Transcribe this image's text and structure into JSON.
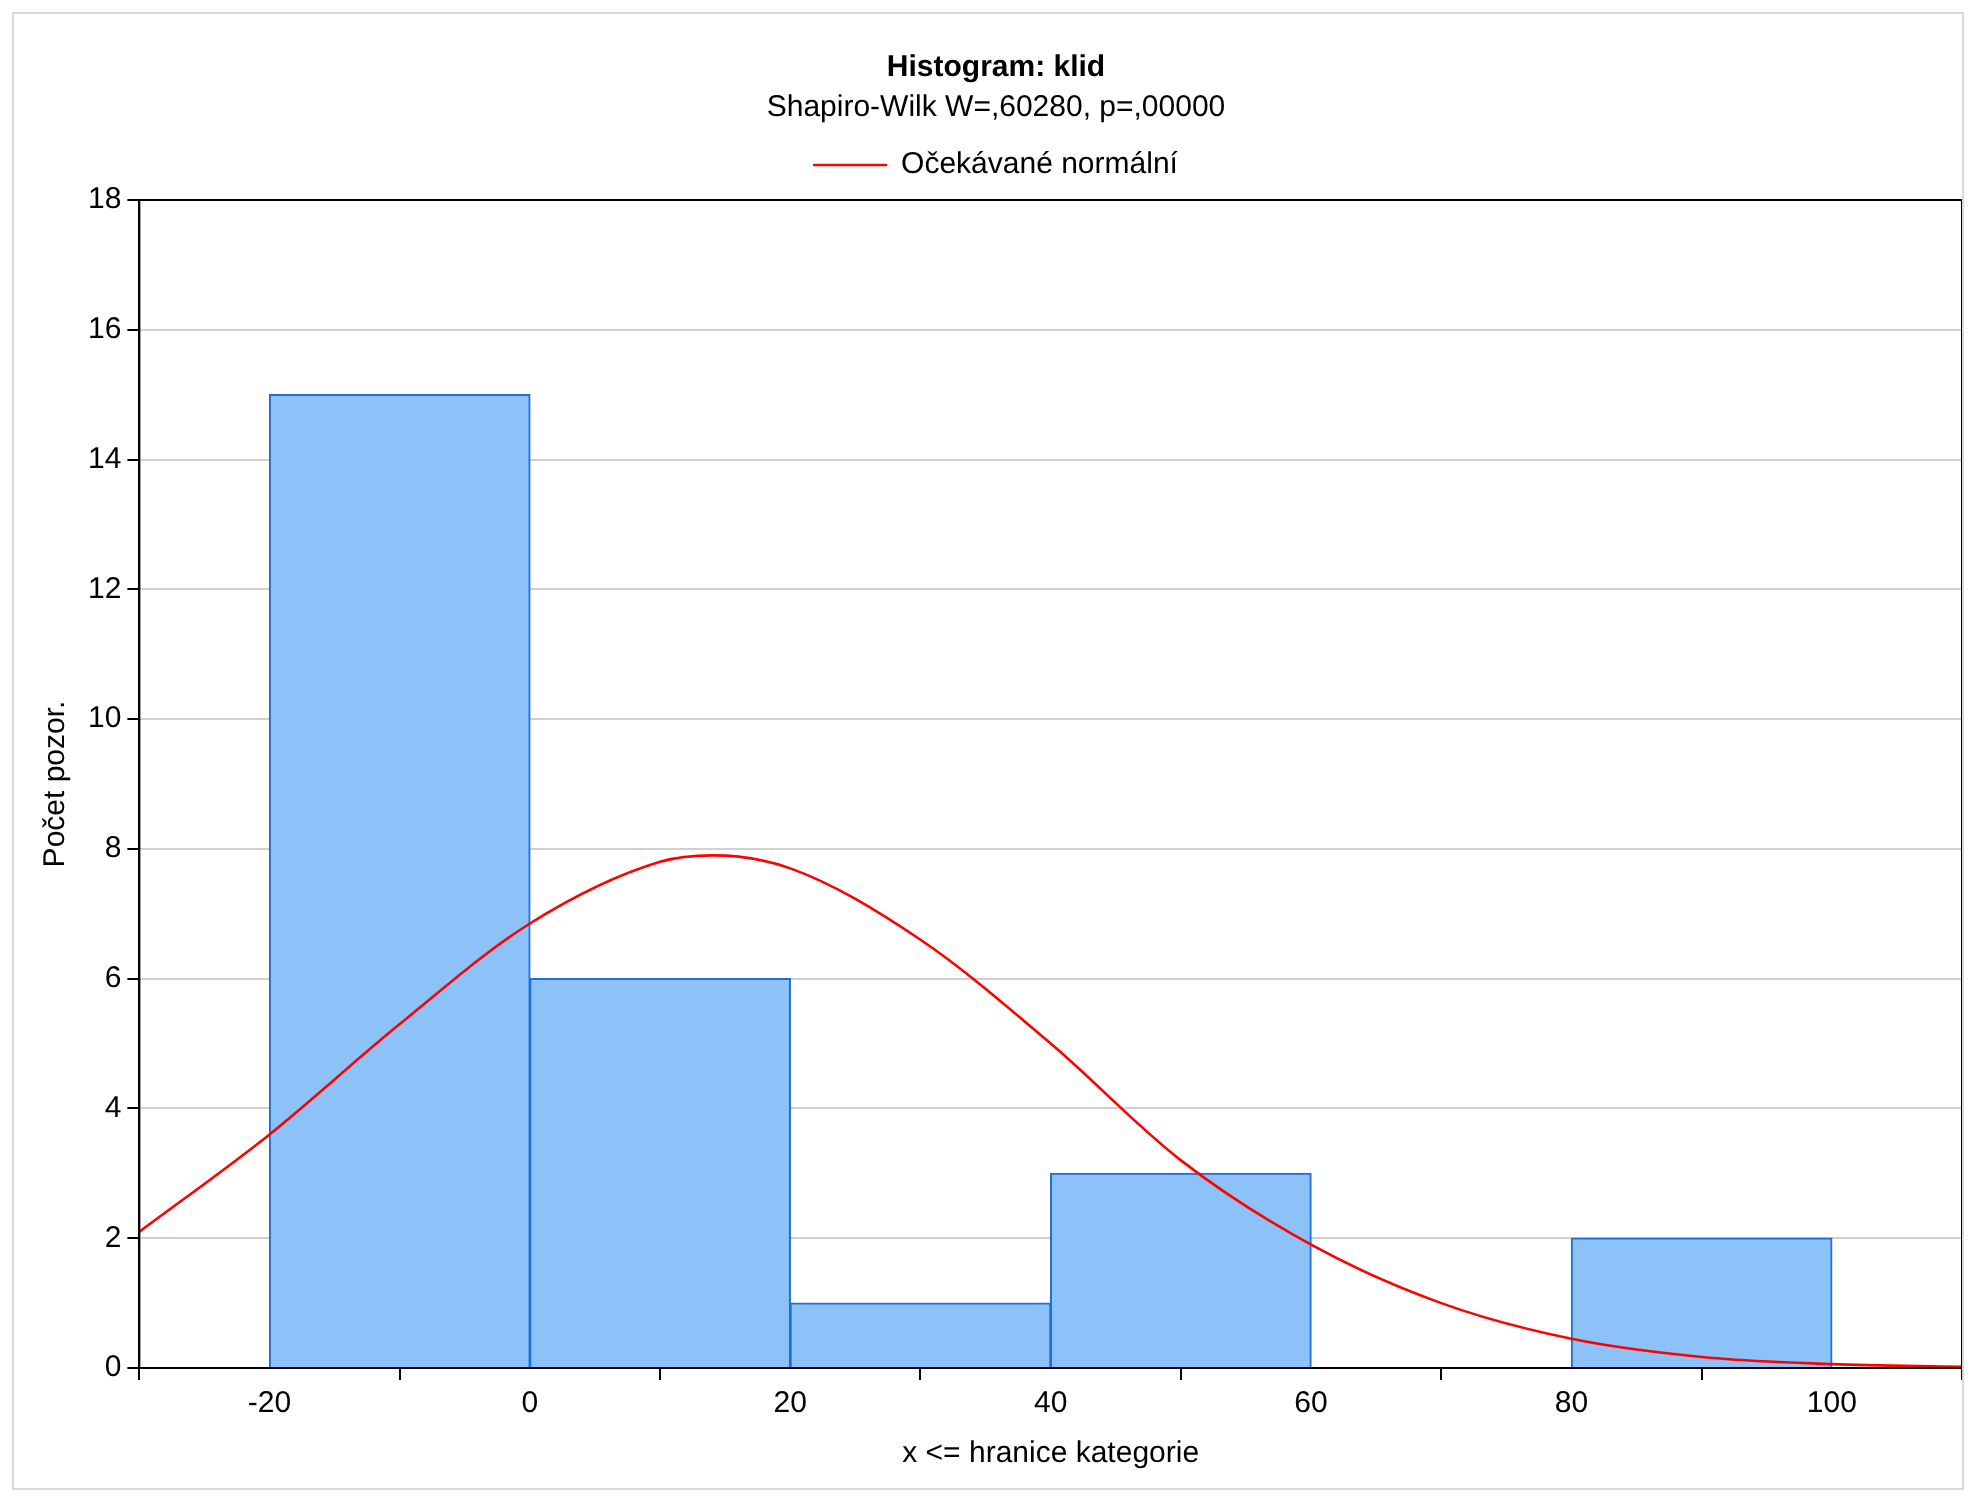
{
  "chart_data": {
    "type": "histogram",
    "title": "Histogram: klid",
    "subtitle": "Shapiro-Wilk W=,60280, p=,00000",
    "xlabel": "x <= hranice kategorie",
    "ylabel": "Počet pozor.",
    "bins": [
      -20,
      0,
      20,
      40,
      60,
      80,
      100
    ],
    "values": [
      15,
      6,
      1,
      3,
      0,
      2
    ],
    "color": "#8cc2f7",
    "series": [
      {
        "type": "line",
        "name": "Očekávané normální",
        "color": "#ff0000",
        "x": [
          -30,
          -20,
          -10,
          0,
          10,
          14,
          20,
          30,
          40,
          50,
          60,
          70,
          80,
          90,
          100,
          110
        ],
        "values": [
          2.1,
          3.6,
          5.3,
          6.85,
          7.8,
          7.9,
          7.7,
          6.6,
          5.0,
          3.2,
          1.9,
          1.0,
          0.45,
          0.17,
          0.06,
          0.02
        ]
      }
    ],
    "xlim": [
      -30,
      110
    ],
    "xticks": [
      -20,
      0,
      20,
      40,
      60,
      80,
      100
    ],
    "ylim": [
      0,
      18
    ],
    "yticks": [
      0,
      2,
      4,
      6,
      8,
      10,
      12,
      14,
      16,
      18
    ],
    "grid": "y",
    "legend": "top",
    "marker": "none"
  }
}
